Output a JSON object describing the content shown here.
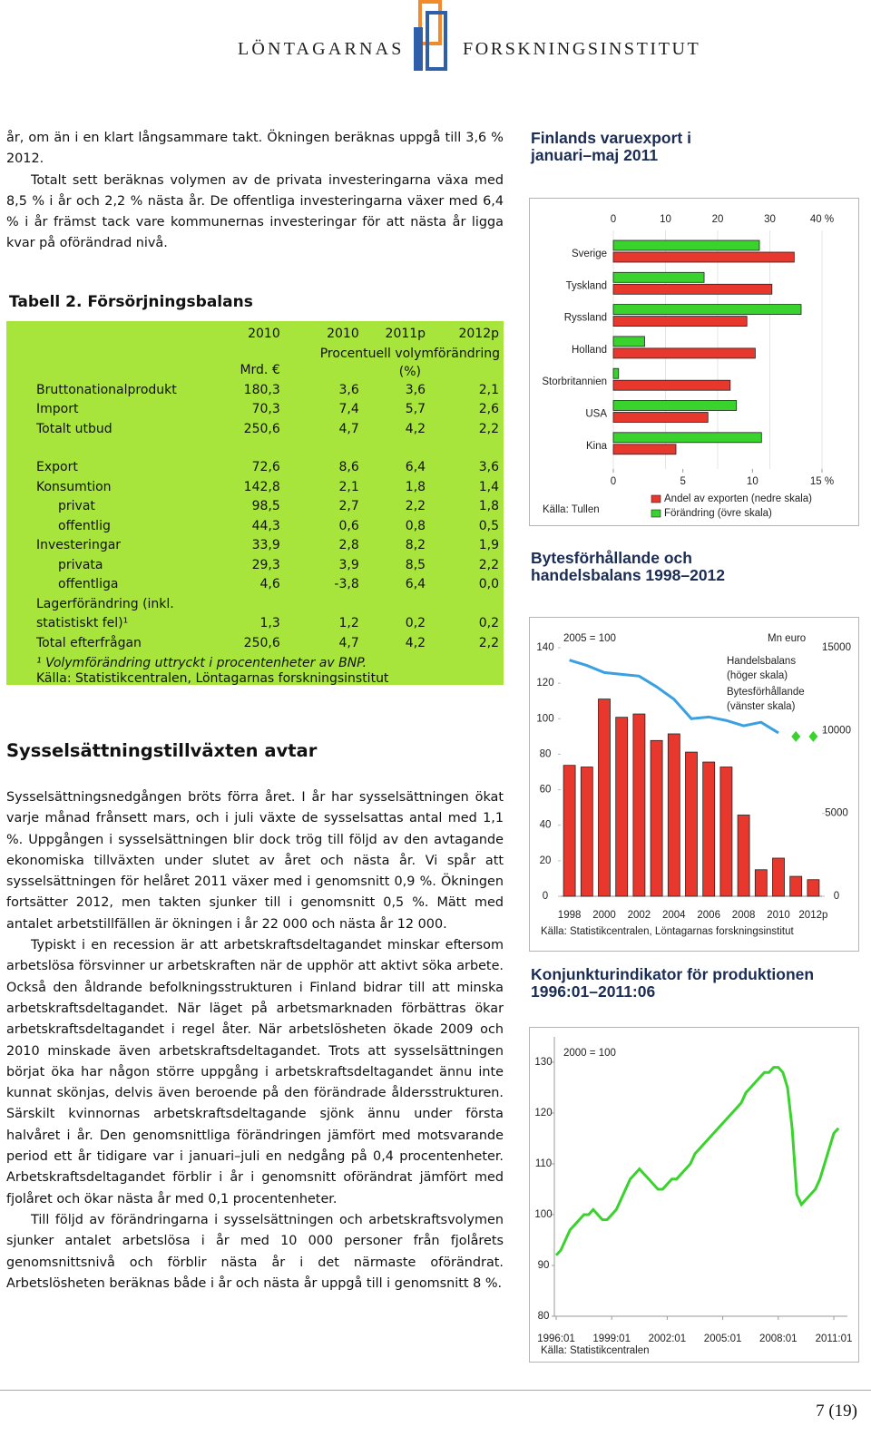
{
  "header": {
    "left": "LÖNTAGARNAS",
    "right": "FORSKNINGSINSTITUT"
  },
  "intro": [
    "år, om än i en klart långsammare takt. Ökningen beräknas uppgå till 3,6 % 2012.",
    "Totalt sett beräknas volymen av de privata investeringarna växa med 8,5 % i år och 2,2 % nästa år. De offentliga investeringarna växer med 6,4 % i år främst tack vare kommunernas investeringar för att nästa år ligga kvar på oförändrad nivå."
  ],
  "table": {
    "title": "Tabell 2. Försörjningsbalans",
    "columns": [
      "2010",
      "2010",
      "2011p",
      "2012p"
    ],
    "units": [
      "Mrd. €",
      "Procentuell volymförändring (%)"
    ],
    "groups": [
      {
        "rows": [
          {
            "cells": [
              "Bruttonationalprodukt",
              "180,3",
              "3,6",
              "3,6",
              "2,1"
            ]
          },
          {
            "cells": [
              "Import",
              "70,3",
              "7,4",
              "5,7",
              "2,6"
            ]
          },
          {
            "cells": [
              "Totalt utbud",
              "250,6",
              "4,7",
              "4,2",
              "2,2"
            ]
          }
        ]
      },
      {
        "rows": [
          {
            "cells": [
              "Export",
              "72,6",
              "8,6",
              "6,4",
              "3,6"
            ]
          },
          {
            "cells": [
              "Konsumtion",
              "142,8",
              "2,1",
              "1,8",
              "1,4"
            ]
          },
          {
            "cells": [
              "privat",
              "98,5",
              "2,7",
              "2,2",
              "1,8"
            ],
            "indent": true
          },
          {
            "cells": [
              "offentlig",
              "44,3",
              "0,6",
              "0,8",
              "0,5"
            ],
            "indent": true
          },
          {
            "cells": [
              "Investeringar",
              "33,9",
              "2,8",
              "8,2",
              "1,9"
            ]
          },
          {
            "cells": [
              "privata",
              "29,3",
              "3,9",
              "8,5",
              "2,2"
            ],
            "indent": true
          },
          {
            "cells": [
              "offentliga",
              "4,6",
              "-3,8",
              "6,4",
              "0,0"
            ],
            "indent": true
          },
          {
            "cells": [
              "Lagerförändring (inkl. statistiskt fel)¹",
              "1,3",
              "1,2",
              "0,2",
              "0,2"
            ]
          },
          {
            "cells": [
              "Total efterfrågan",
              "250,6",
              "4,7",
              "4,2",
              "2,2"
            ]
          }
        ]
      }
    ],
    "footnote": "¹ Volymförändring uttryckt i procentenheter av BNP.",
    "source": "Källa: Statistikcentralen, Löntagarnas forskningsinstitut"
  },
  "section": {
    "heading": "Sysselsättningstillväxten avtar",
    "paragraphs": [
      "Sysselsättningsnedgången bröts förra året. I år har sysselsättningen ökat varje månad frånsett mars, och i juli växte de sysselsattas antal med 1,1 %. Uppgången i sysselsättningen blir dock trög till följd av den avtagande ekonomiska tillväxten under slutet av året och nästa år. Vi spår att sysselsättningen för helåret 2011 växer med i genomsnitt 0,9 %. Ökningen fortsätter 2012, men takten sjunker till i genomsnitt 0,5 %. Mätt med antalet arbetstillfällen är ökningen i år 22 000 och nästa år 12 000.",
      "Typiskt i en recession är att arbetskraftsdeltagandet minskar eftersom arbetslösa försvinner ur arbetskraften när de upphör att aktivt söka arbete. Också den åldrande befolkningsstrukturen i Finland bidrar till att minska arbetskraftsdeltagandet. När läget på arbetsmarknaden förbättras ökar arbetskraftsdeltagandet i regel åter. När arbetslösheten ökade 2009 och 2010 minskade även arbetskraftsdeltagandet. Trots att sysselsättningen börjat öka har någon större uppgång i arbetskraftsdeltagandet ännu inte kunnat skönjas, delvis även beroende på den förändrade åldersstrukturen. Särskilt kvinnornas arbetskraftsdeltagande sjönk ännu under första halvåret i år. Den genomsnittliga förändringen jämfört med motsvarande period ett år tidigare var i januari–juli en nedgång på 0,4 procentenheter. Arbetskraftsdeltagandet förblir i år i genomsnitt oförändrat jämfört med fjolåret och ökar nästa år med 0,1 procentenheter.",
      "Till följd av förändringarna i sysselsättningen och arbetskraftsvolymen sjunker antalet arbetslösa i år med 10 000 personer från fjolårets genomsnittsnivå och förblir nästa år i det närmaste oförändrat. Arbetslösheten beräknas både i år och nästa år uppgå till i genomsnitt 8 %."
    ]
  },
  "chart_data": [
    {
      "type": "bar",
      "orientation": "horizontal",
      "title": "Finlands varuexport i januari–maj 2011",
      "categories": [
        "Sverige",
        "Tyskland",
        "Ryssland",
        "Holland",
        "Storbritannien",
        "USA",
        "Kina"
      ],
      "series": [
        {
          "name": "Andel av exporten (nedre skala)",
          "color": "#e8382e",
          "axis": "x",
          "values": [
            13,
            11.4,
            9.6,
            10.2,
            8.4,
            6.8,
            4.5
          ]
        },
        {
          "name": "Förändring (övre skala)",
          "color": "#3ad22d",
          "axis": "x2",
          "values": [
            28,
            17.4,
            36,
            6,
            1,
            23.6,
            28.4
          ]
        }
      ],
      "xlim": [
        0,
        15
      ],
      "xticks": [
        0,
        5,
        10,
        {
          "value": 15,
          "label": "15 %"
        }
      ],
      "x2lim": [
        0,
        40
      ],
      "x2ticks": [
        0,
        10,
        20,
        30,
        {
          "value": 40,
          "label": "40 %"
        }
      ],
      "source": "Källa: Tullen"
    },
    {
      "type": "combo",
      "title": "Bytesförhållande och handelsbalans 1998–2012",
      "categories": [
        "1998",
        null,
        "2000",
        null,
        "2002",
        null,
        "2004",
        null,
        "2006",
        null,
        "2008",
        null,
        "2010",
        null,
        "2012p"
      ],
      "series": [
        {
          "name": "Handelsbalans (höger skala)",
          "type": "bar",
          "axis": "y2",
          "color": "#e8382e",
          "values": [
            7900,
            7800,
            11900,
            10800,
            11000,
            9400,
            9800,
            8700,
            8100,
            7800,
            4900,
            1600,
            2300,
            1200,
            1000
          ]
        },
        {
          "name": "Bytesförhållande (vänster skala)",
          "type": "line",
          "color": "#3aa0e0",
          "values": [
            133,
            130,
            126,
            125,
            124,
            118,
            111,
            100,
            101,
            99,
            96,
            98,
            92,
            null,
            null
          ],
          "forecast_color": "#3ad22d",
          "forecast": [
            null,
            null,
            null,
            null,
            null,
            null,
            null,
            null,
            null,
            null,
            null,
            null,
            null,
            90,
            90
          ]
        }
      ],
      "ylim": [
        0,
        140
      ],
      "yticks": [
        0,
        20,
        40,
        60,
        80,
        100,
        120,
        140
      ],
      "y2lim": [
        0,
        15000
      ],
      "y2ticks": [
        0,
        5000,
        10000,
        15000
      ],
      "y_note": "2005 = 100",
      "y2_label": "Mn euro",
      "source": "Källa: Statistikcentralen, Löntagarnas forskningsinstitut"
    },
    {
      "type": "line",
      "title": "Konjunkturindikator för produktionen 1996:01–2011:06",
      "x": [
        "1996:01",
        "1996:04",
        "1996:07",
        "1996:10",
        "1997:01",
        "1997:04",
        "1997:07",
        "1997:10",
        "1998:01",
        "1998:04",
        "1998:07",
        "1998:10",
        "1999:01",
        "1999:04",
        "1999:07",
        "1999:10",
        "2000:01",
        "2000:04",
        "2000:07",
        "2000:10",
        "2001:01",
        "2001:04",
        "2001:07",
        "2001:10",
        "2002:01",
        "2002:04",
        "2002:07",
        "2002:10",
        "2003:01",
        "2003:04",
        "2003:07",
        "2003:10",
        "2004:01",
        "2004:04",
        "2004:07",
        "2004:10",
        "2005:01",
        "2005:04",
        "2005:07",
        "2005:10",
        "2006:01",
        "2006:04",
        "2006:07",
        "2006:10",
        "2007:01",
        "2007:04",
        "2007:07",
        "2007:10",
        "2008:01",
        "2008:04",
        "2008:07",
        "2008:10",
        "2009:01",
        "2009:04",
        "2009:07",
        "2009:10",
        "2010:01",
        "2010:04",
        "2010:07",
        "2010:10",
        "2011:01",
        "2011:04"
      ],
      "series": [
        {
          "color": "#3ad22d",
          "values": [
            92,
            93,
            95,
            97,
            98,
            99,
            100,
            100,
            101,
            100,
            99,
            99,
            100,
            101,
            103,
            105,
            107,
            108,
            109,
            108,
            107,
            106,
            105,
            105,
            106,
            107,
            107,
            108,
            109,
            110,
            112,
            113,
            114,
            115,
            116,
            117,
            118,
            119,
            120,
            121,
            122,
            124,
            125,
            126,
            127,
            128,
            128,
            129,
            129,
            128,
            125,
            117,
            104,
            102,
            103,
            104,
            105,
            107,
            110,
            113,
            116,
            117
          ]
        }
      ],
      "ylim": [
        80,
        135
      ],
      "yticks": [
        80,
        90,
        100,
        110,
        120,
        130
      ],
      "xticks": [
        "1996:01",
        "1999:01",
        "2002:01",
        "2005:01",
        "2008:01",
        "2011:01"
      ],
      "y_note": "2000 = 100",
      "source": "Källa: Statistikcentralen"
    }
  ],
  "footer": {
    "page": "7 (19)"
  }
}
